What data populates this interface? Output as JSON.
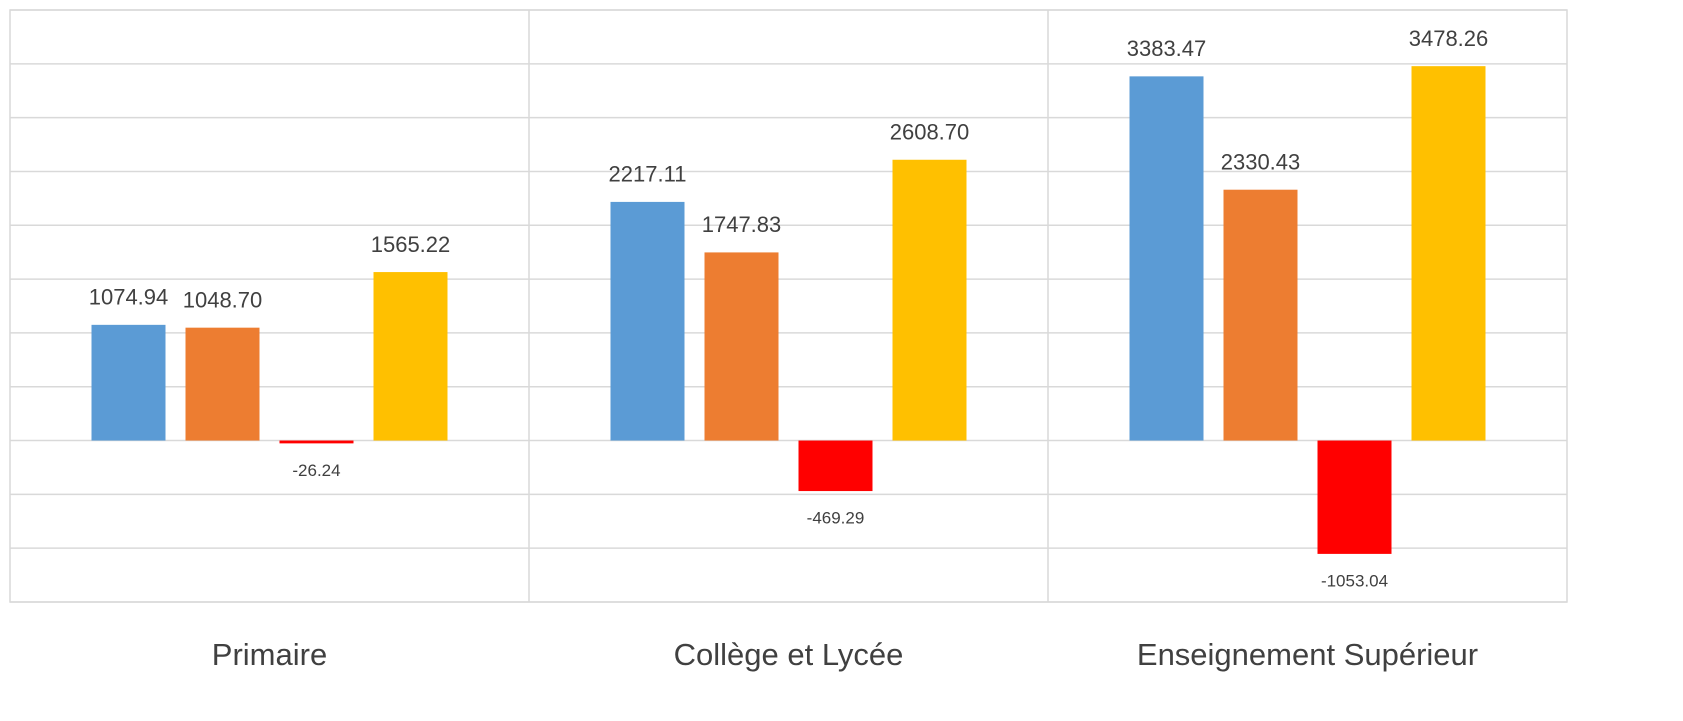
{
  "chart_data": {
    "type": "bar",
    "categories": [
      "Primaire",
      "Collège et Lycée",
      "Enseignement Supérieur"
    ],
    "series": [
      {
        "color": "#5b9bd5",
        "values": [
          1074.94,
          2217.11,
          3383.47
        ],
        "value_labels": [
          "1074.94",
          "2217.11",
          "3383.47"
        ]
      },
      {
        "color": "#ed7d31",
        "values": [
          1048.7,
          1747.83,
          2330.43
        ],
        "value_labels": [
          "1048.70",
          "1747.83",
          "2330.43"
        ]
      },
      {
        "color": "#ff0000",
        "values": [
          -26.24,
          -469.29,
          -1053.04
        ],
        "value_labels": [
          "-26.24",
          "-469.29",
          "-1053.04"
        ]
      },
      {
        "color": "#ffc000",
        "values": [
          1565.22,
          2608.7,
          3478.26
        ],
        "value_labels": [
          "1565.22",
          "2608.70",
          "3478.26"
        ]
      }
    ],
    "ylim": [
      -1500,
      4000
    ],
    "yticks": [
      -1500,
      -1000,
      -500,
      0,
      500,
      1000,
      1500,
      2000,
      2500,
      3000,
      3500,
      4000
    ],
    "grid": true
  }
}
